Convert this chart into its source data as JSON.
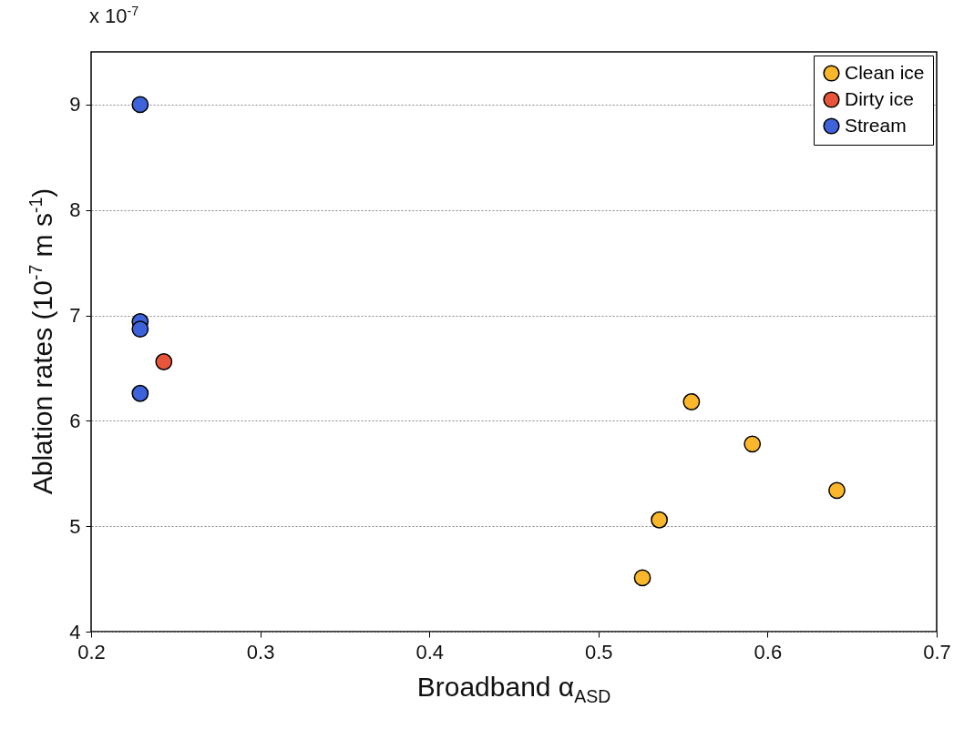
{
  "chart_data": {
    "type": "scatter",
    "xlabel": "Broadband α$_{ASD}$",
    "ylabel": "Ablation rates (10$^{-7}$ m s$^{-1}$)",
    "annotations": [
      "x 10$^{-7}$"
    ],
    "xlim": [
      0.2,
      0.7
    ],
    "xticks": [
      0.2,
      0.3,
      0.4,
      0.5,
      0.6,
      0.7
    ],
    "ylim": [
      4,
      9.5
    ],
    "yticks": [
      4,
      5,
      6,
      7,
      8,
      9
    ],
    "grid": "y",
    "legend": "top right",
    "marker": "circle",
    "series": [
      {
        "name": "Clean ice",
        "color": "#fbb72b",
        "x": [
          0.555,
          0.591,
          0.641,
          0.536,
          0.526
        ],
        "values": [
          6.18,
          5.78,
          5.34,
          5.06,
          4.51
        ]
      },
      {
        "name": "Dirty ice",
        "color": "#e8553a",
        "x": [
          0.243
        ],
        "values": [
          6.56
        ]
      },
      {
        "name": "Stream",
        "color": "#3d62d9",
        "x": [
          0.229,
          0.229,
          0.229,
          0.229
        ],
        "values": [
          9.0,
          6.94,
          6.87,
          6.26
        ]
      }
    ]
  }
}
